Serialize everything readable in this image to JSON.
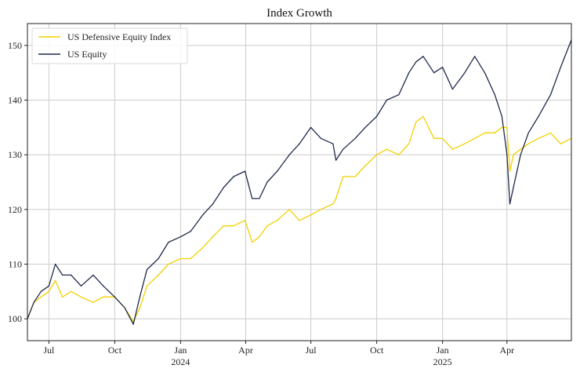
{
  "chart_data": {
    "type": "line",
    "title": "Index Growth",
    "xlabel": "",
    "ylabel": "",
    "ylim": [
      96,
      154
    ],
    "xlim": [
      "2023-06-01",
      "2025-06-30"
    ],
    "grid": true,
    "legend_position": "top-left",
    "y_ticks": [
      100,
      110,
      120,
      130,
      140,
      150
    ],
    "x_ticks": [
      {
        "date": "2023-07-01",
        "label": "Jul",
        "year": ""
      },
      {
        "date": "2023-10-01",
        "label": "Oct",
        "year": ""
      },
      {
        "date": "2024-01-01",
        "label": "Jan",
        "year": "2024"
      },
      {
        "date": "2024-04-01",
        "label": "Apr",
        "year": ""
      },
      {
        "date": "2024-07-01",
        "label": "Jul",
        "year": ""
      },
      {
        "date": "2024-10-01",
        "label": "Oct",
        "year": ""
      },
      {
        "date": "2025-01-01",
        "label": "Jan",
        "year": "2025"
      },
      {
        "date": "2025-04-01",
        "label": "Apr",
        "year": ""
      }
    ],
    "series": [
      {
        "name": "US Defensive Equity Index",
        "color": "#f2d000",
        "x": [
          "2023-06-01",
          "2023-06-10",
          "2023-06-20",
          "2023-07-01",
          "2023-07-10",
          "2023-07-20",
          "2023-08-01",
          "2023-08-15",
          "2023-09-01",
          "2023-09-15",
          "2023-10-01",
          "2023-10-15",
          "2023-10-27",
          "2023-11-05",
          "2023-11-15",
          "2023-12-01",
          "2023-12-15",
          "2024-01-01",
          "2024-01-15",
          "2024-02-01",
          "2024-02-15",
          "2024-03-01",
          "2024-03-15",
          "2024-03-31",
          "2024-04-10",
          "2024-04-20",
          "2024-05-01",
          "2024-05-15",
          "2024-06-01",
          "2024-06-15",
          "2024-07-01",
          "2024-07-15",
          "2024-08-01",
          "2024-08-05",
          "2024-08-15",
          "2024-09-01",
          "2024-09-15",
          "2024-10-01",
          "2024-10-15",
          "2024-11-01",
          "2024-11-15",
          "2024-11-25",
          "2024-12-05",
          "2024-12-20",
          "2025-01-01",
          "2025-01-15",
          "2025-02-01",
          "2025-02-15",
          "2025-03-01",
          "2025-03-15",
          "2025-03-25",
          "2025-04-01",
          "2025-04-05",
          "2025-04-10",
          "2025-04-20",
          "2025-05-01",
          "2025-05-15",
          "2025-06-01",
          "2025-06-15",
          "2025-06-30"
        ],
        "values": [
          100,
          103,
          104,
          105,
          107,
          104,
          105,
          104,
          103,
          104,
          104,
          102,
          99.5,
          102,
          106,
          108,
          110,
          111,
          111,
          113,
          115,
          117,
          117,
          118,
          114,
          115,
          117,
          118,
          120,
          118,
          119,
          120,
          121,
          122,
          126,
          126,
          128,
          130,
          131,
          130,
          132,
          136,
          137,
          133,
          133,
          131,
          132,
          133,
          134,
          134,
          135,
          135,
          127,
          130,
          131,
          132,
          133,
          134,
          132,
          133
        ]
      },
      {
        "name": "US Equity",
        "color": "#1f2a4a",
        "x": [
          "2023-06-01",
          "2023-06-10",
          "2023-06-20",
          "2023-07-01",
          "2023-07-10",
          "2023-07-20",
          "2023-08-01",
          "2023-08-15",
          "2023-09-01",
          "2023-09-15",
          "2023-10-01",
          "2023-10-15",
          "2023-10-27",
          "2023-11-05",
          "2023-11-15",
          "2023-12-01",
          "2023-12-15",
          "2024-01-01",
          "2024-01-15",
          "2024-02-01",
          "2024-02-15",
          "2024-03-01",
          "2024-03-15",
          "2024-03-31",
          "2024-04-10",
          "2024-04-20",
          "2024-05-01",
          "2024-05-15",
          "2024-06-01",
          "2024-06-15",
          "2024-07-01",
          "2024-07-15",
          "2024-08-01",
          "2024-08-05",
          "2024-08-15",
          "2024-09-01",
          "2024-09-15",
          "2024-10-01",
          "2024-10-15",
          "2024-11-01",
          "2024-11-15",
          "2024-11-25",
          "2024-12-05",
          "2024-12-20",
          "2025-01-01",
          "2025-01-15",
          "2025-02-01",
          "2025-02-15",
          "2025-03-01",
          "2025-03-15",
          "2025-03-25",
          "2025-04-01",
          "2025-04-05",
          "2025-04-10",
          "2025-04-20",
          "2025-05-01",
          "2025-05-15",
          "2025-06-01",
          "2025-06-15",
          "2025-06-30"
        ],
        "values": [
          100,
          103,
          105,
          106,
          110,
          108,
          108,
          106,
          108,
          106,
          104,
          102,
          99,
          104,
          109,
          111,
          114,
          115,
          116,
          119,
          121,
          124,
          126,
          127,
          122,
          122,
          125,
          127,
          130,
          132,
          135,
          133,
          132,
          129,
          131,
          133,
          135,
          137,
          140,
          141,
          145,
          147,
          148,
          145,
          146,
          142,
          145,
          148,
          145,
          141,
          137,
          130,
          121,
          124,
          130,
          134,
          137,
          141,
          146,
          151
        ]
      }
    ]
  }
}
